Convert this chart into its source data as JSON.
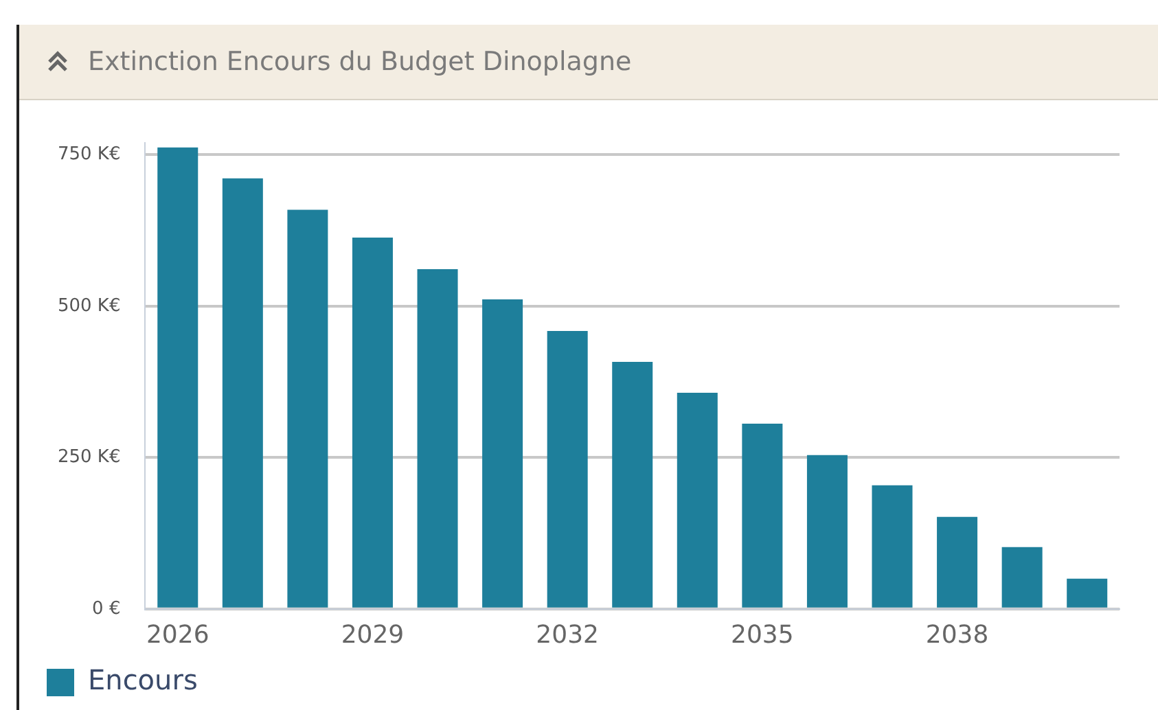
{
  "chart_data": {
    "type": "bar",
    "title": "Extinction Encours du Budget Dinoplagne",
    "categories": [
      "2026",
      null,
      null,
      "2029",
      null,
      null,
      "2032",
      null,
      null,
      "2035",
      null,
      null,
      "2038",
      null,
      null
    ],
    "series": [
      {
        "name": "Encours",
        "color": "#1e7f9b",
        "values": [
          762,
          711,
          659,
          613,
          561,
          511,
          459,
          408,
          357,
          306,
          254,
          204,
          152,
          102,
          50
        ]
      }
    ],
    "ylim": [
      0,
      770
    ],
    "yticks": [
      {
        "value": 0,
        "label": "0 €"
      },
      {
        "value": 250,
        "label": "250 K€"
      },
      {
        "value": 500,
        "label": "500 K€"
      },
      {
        "value": 750,
        "label": "750 K€"
      }
    ],
    "grid": "y",
    "legend": "bottom left",
    "marker": "square"
  }
}
